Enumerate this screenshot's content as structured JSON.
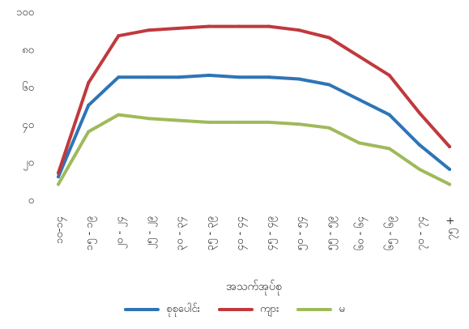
{
  "chart_data": {
    "type": "line",
    "title": "",
    "xlabel": "အသက်အုပ်စု",
    "ylabel": "",
    "ylim": [
      0,
      100
    ],
    "yticks": [
      {
        "value": 0,
        "label": "၀"
      },
      {
        "value": 20,
        "label": "၂၀"
      },
      {
        "value": 40,
        "label": "၄၀"
      },
      {
        "value": 60,
        "label": "၆၀"
      },
      {
        "value": 80,
        "label": "၈၀"
      },
      {
        "value": 100,
        "label": "၁၀၀"
      }
    ],
    "categories": [
      "၁၀-၁၄",
      "၁၅ - ၁၉",
      "၂၀ - ၂၄",
      "၂၅ - ၂၉",
      "၃၀ - ၃၄",
      "၃၅ - ၃၉",
      "၄၀ - ၄၄",
      "၄၅ - ၄၉",
      "၅၀ - ၅၄",
      "၅၅ - ၅၉",
      "၆၀ - ၆၄",
      "၆၅ - ၆၉",
      "၇၀ - ၇၄",
      "၇၅ +"
    ],
    "series": [
      {
        "name": "စုစုပေါင်း",
        "color": "#2e75b6",
        "values": [
          12,
          50,
          65,
          65,
          65,
          66,
          65,
          65,
          64,
          61,
          53,
          45,
          29,
          16
        ]
      },
      {
        "name": "ကျား",
        "color": "#c0393d",
        "values": [
          14,
          62,
          87,
          90,
          91,
          92,
          92,
          92,
          90,
          86,
          76,
          66,
          46,
          28
        ]
      },
      {
        "name": "မ",
        "color": "#9fba5a",
        "values": [
          8,
          36,
          45,
          43,
          42,
          41,
          41,
          41,
          40,
          38,
          30,
          27,
          16,
          8
        ]
      }
    ],
    "grid": false,
    "legend_position": "bottom"
  }
}
